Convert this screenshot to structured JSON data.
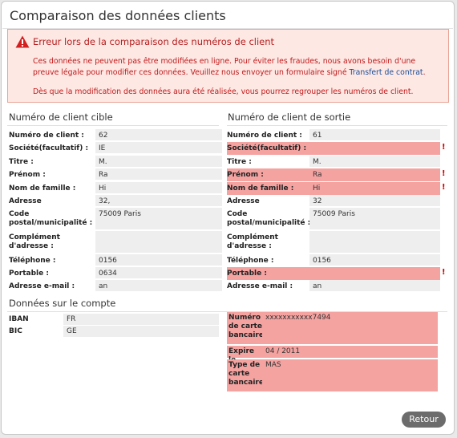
{
  "dialog": {
    "title": "Comparaison des données clients",
    "error": {
      "title": "Erreur lors de la comparaison des numéros de client",
      "message_before_link": "Ces données ne peuvent pas être modifiées en ligne. Pour éviter les fraudes, nous avons besoin d'une preuve légale pour modifier ces données. Veuillez nous envoyer un formulaire signé ",
      "link": "Transfert de contrat",
      "message_after_link": ".",
      "message2": "Dès que la modification des données aura été réalisée, vous pourrez regrouper les numéros de client."
    }
  },
  "target": {
    "heading": "Numéro de client cible",
    "fields": [
      {
        "label": "Numéro de client :",
        "value": "62"
      },
      {
        "label": "Société(facultatif) :",
        "value": "IE"
      },
      {
        "label": "Titre :",
        "value": "M."
      },
      {
        "label": "Prénom :",
        "value": "Ra"
      },
      {
        "label": "Nom de famille :",
        "value": "Hi"
      },
      {
        "label": "Adresse",
        "value": "32,"
      },
      {
        "label": "Code postal/municipalité :",
        "value": "75009 Paris"
      },
      {
        "label": "Complément d'adresse :",
        "value": ""
      },
      {
        "label": "Téléphone :",
        "value": "0156"
      },
      {
        "label": "Portable :",
        "value": "0634"
      },
      {
        "label": "Adresse e-mail :",
        "value": "an"
      }
    ]
  },
  "source": {
    "heading": "Numéro de client de sortie",
    "fields": [
      {
        "label": "Numéro de client :",
        "value": "61"
      },
      {
        "label": "Société(facultatif) :",
        "value": "",
        "mismatch": "!"
      },
      {
        "label": "Titre :",
        "value": "M."
      },
      {
        "label": "Prénom :",
        "value": "Ra",
        "mismatch": "!"
      },
      {
        "label": "Nom de famille :",
        "value": "Hi",
        "mismatch": "!"
      },
      {
        "label": "Adresse",
        "value": "32"
      },
      {
        "label": "Code postal/municipalité :",
        "value": "75009 Paris"
      },
      {
        "label": "Complément d'adresse :",
        "value": ""
      },
      {
        "label": "Téléphone :",
        "value": "0156"
      },
      {
        "label": "Portable :",
        "value": "",
        "mismatch": "!"
      },
      {
        "label": "Adresse e-mail :",
        "value": "an"
      }
    ]
  },
  "account": {
    "heading": "Données sur le compte",
    "target": [
      {
        "label": "IBAN",
        "value": "FR"
      },
      {
        "label": "BIC",
        "value": "GE"
      }
    ],
    "source": [
      {
        "label": "Numéro de carte bancaire",
        "value": "xxxxxxxxxxx7494"
      },
      {
        "label": "Expire le",
        "value": "04 / 2011"
      },
      {
        "label": "Type de carte bancaire",
        "value": "MAS"
      }
    ]
  },
  "buttons": {
    "back": "Retour"
  },
  "colors": {
    "error_bg": "#fde8e4",
    "error_text": "#c01a1a",
    "mismatch_bg": "#f4a3a1",
    "link": "#1b4f9a"
  }
}
